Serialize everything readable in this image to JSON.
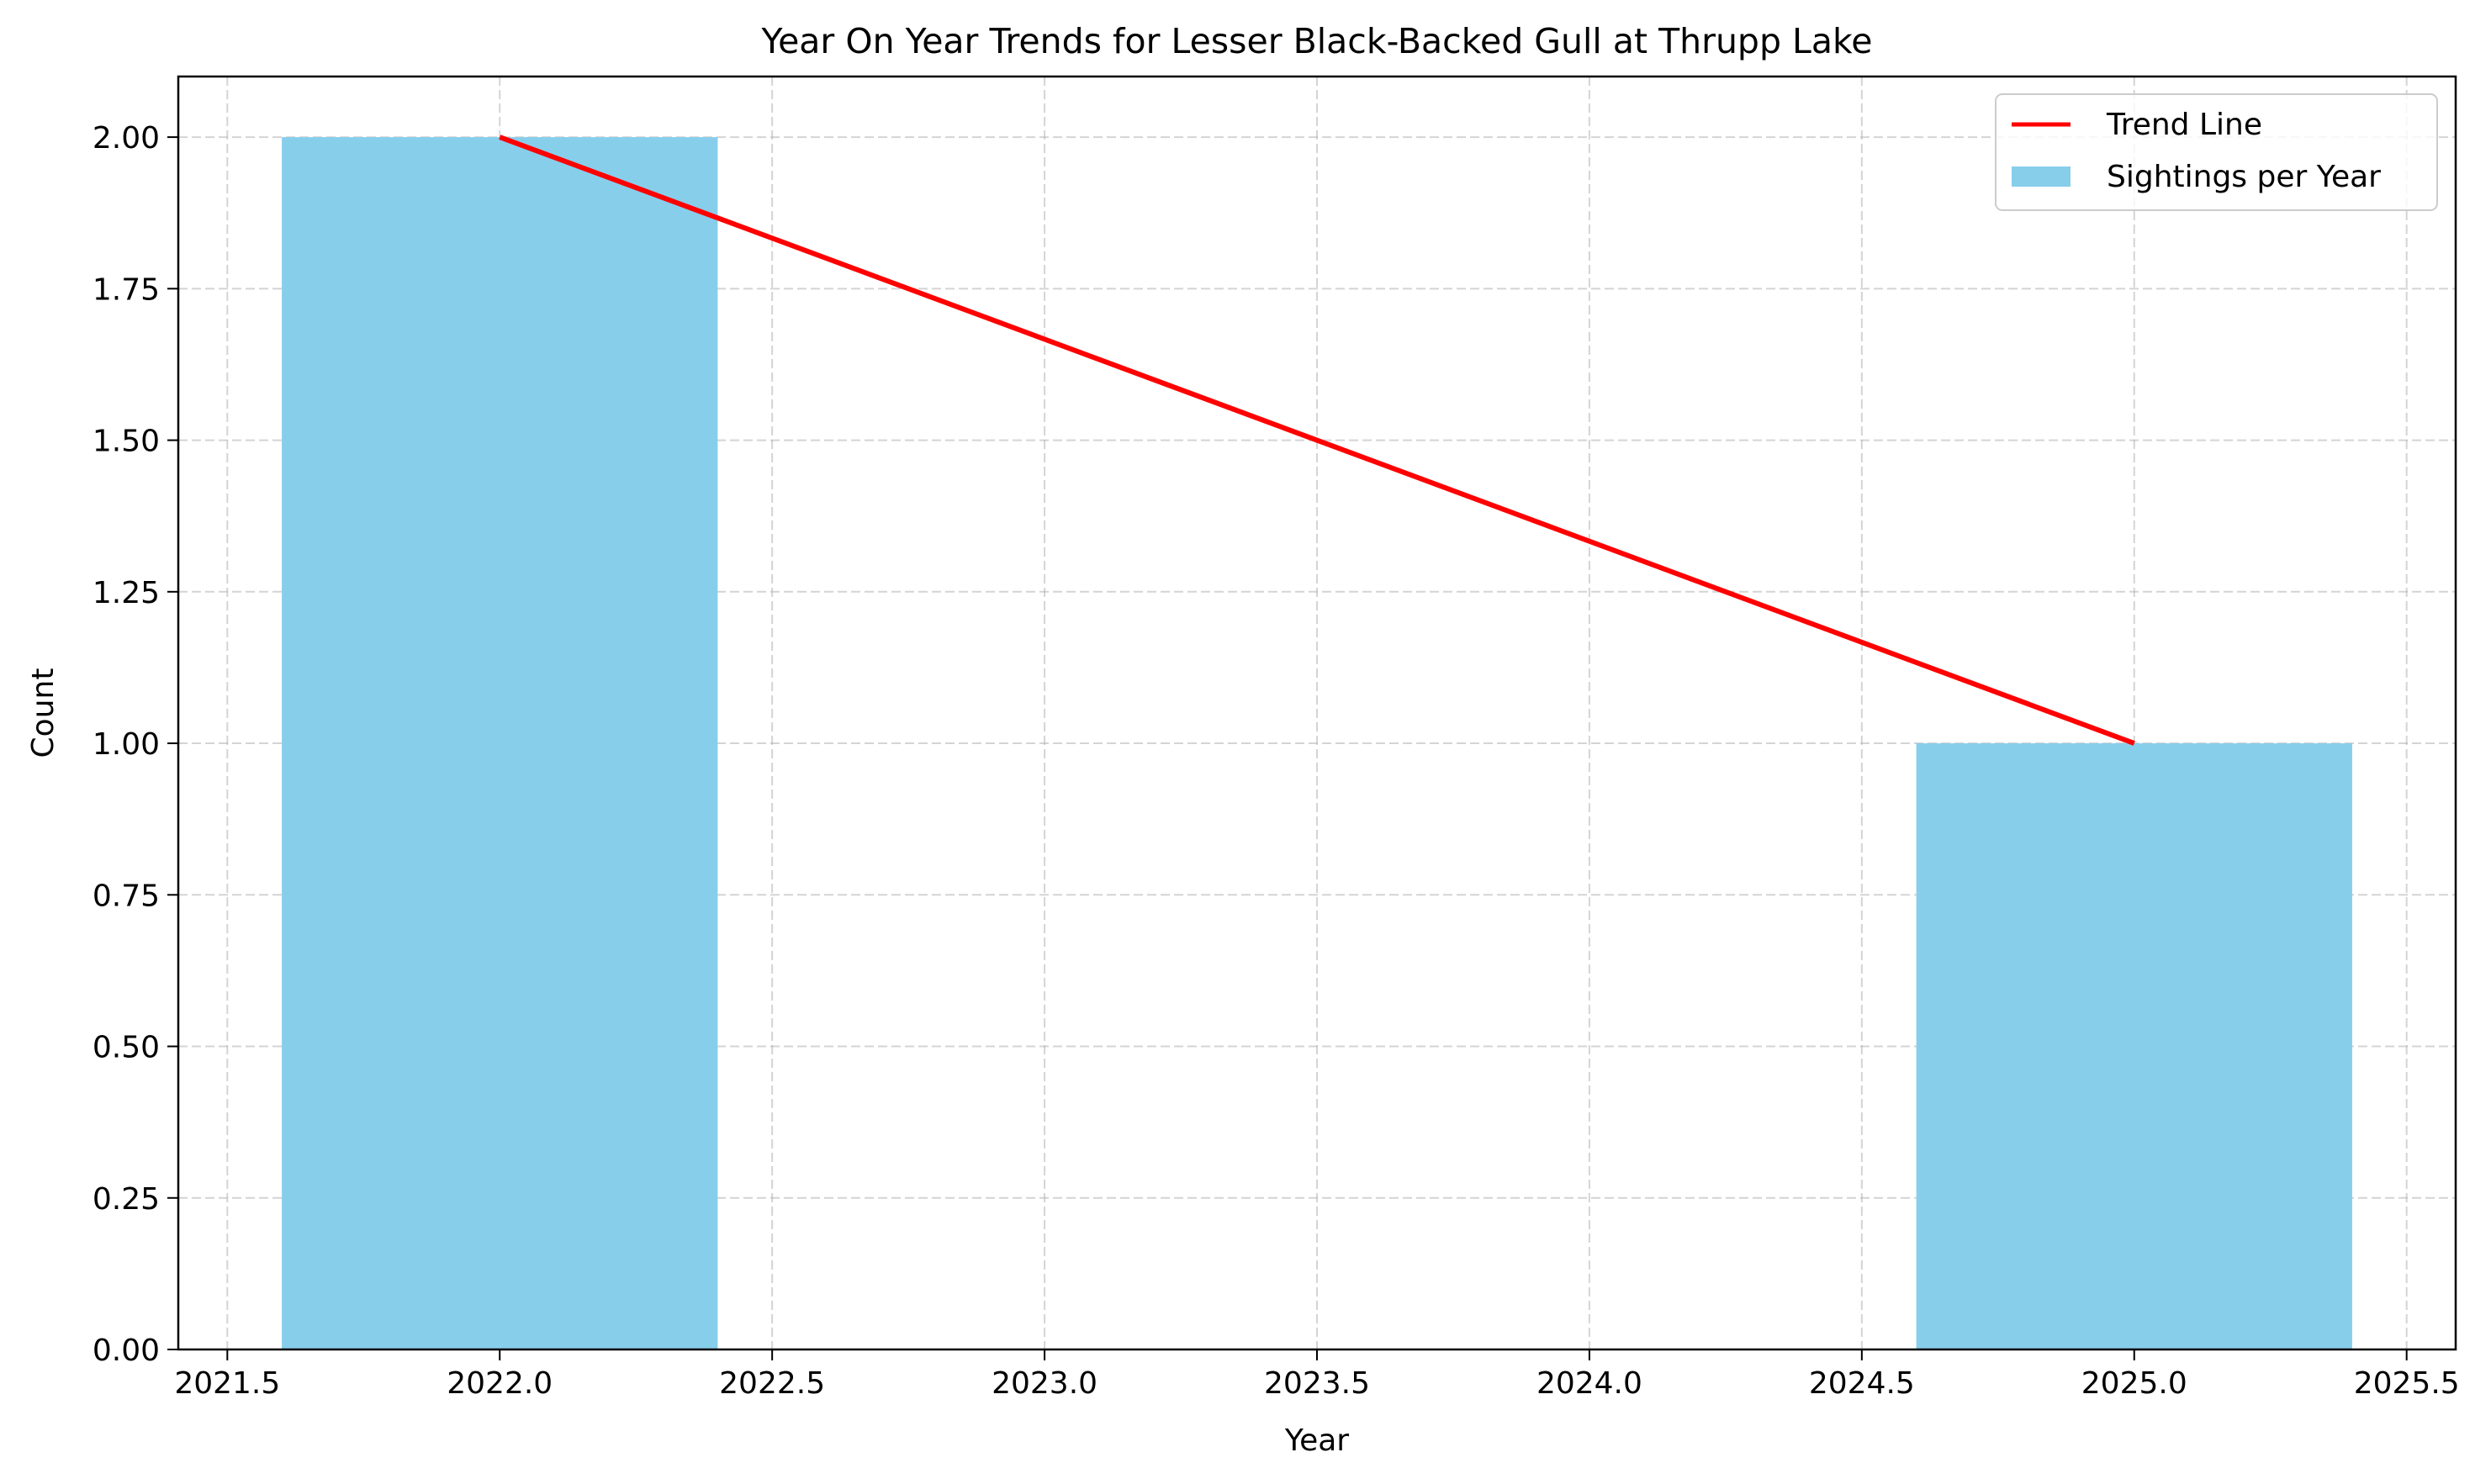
{
  "chart_data": {
    "type": "bar",
    "title": "Year On Year Trends for Lesser Black-Backed Gull at Thrupp Lake",
    "xlabel": "Year",
    "ylabel": "Count",
    "xlim": [
      2021.41,
      2025.59
    ],
    "ylim": [
      0,
      2.1
    ],
    "grid": true,
    "legend_position": "top-right",
    "bar_width": 0.8,
    "x_ticks": [
      2021.5,
      2022.0,
      2022.5,
      2023.0,
      2023.5,
      2024.0,
      2024.5,
      2025.0,
      2025.5
    ],
    "x_tick_labels": [
      "2021.5",
      "2022.0",
      "2022.5",
      "2023.0",
      "2023.5",
      "2024.0",
      "2024.5",
      "2025.0",
      "2025.5"
    ],
    "y_ticks": [
      0,
      0.25,
      0.5,
      0.75,
      1.0,
      1.25,
      1.5,
      1.75,
      2.0
    ],
    "y_tick_labels": [
      "0.00",
      "0.25",
      "0.50",
      "0.75",
      "1.00",
      "1.25",
      "1.50",
      "1.75",
      "2.00"
    ],
    "series": [
      {
        "name": "Sightings per Year",
        "kind": "bar",
        "color": "#87ceeb",
        "x": [
          2022,
          2025
        ],
        "values": [
          2,
          1
        ]
      },
      {
        "name": "Trend Line",
        "kind": "line",
        "color": "#ff0000",
        "x": [
          2022,
          2025
        ],
        "values": [
          2,
          1
        ]
      }
    ]
  }
}
